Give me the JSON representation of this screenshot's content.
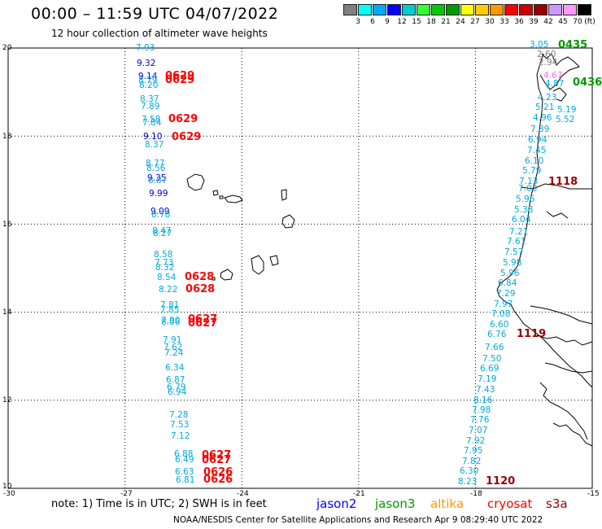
{
  "header": {
    "title": "00:00 – 11:59 UTC 04/07/2022",
    "subtitle": "12 hour collection of altimeter wave heights"
  },
  "color_scale": {
    "colors": [
      "#808080",
      "#00ffff",
      "#00aaff",
      "#0000ff",
      "#00cccc",
      "#33ff33",
      "#00cc00",
      "#009900",
      "#ffff00",
      "#ffcc00",
      "#ff9900",
      "#ff0000",
      "#cc0000",
      "#990000",
      "#cc99ff",
      "#ff99ff",
      "#000000"
    ],
    "labels": [
      "3",
      "6",
      "9",
      "12",
      "15",
      "18",
      "21",
      "24",
      "27",
      "30",
      "33",
      "36",
      "39",
      "42",
      "45",
      "70",
      "(ft)"
    ]
  },
  "axes": {
    "lat_labels": [
      "20",
      "18",
      "16",
      "14",
      "12",
      "10"
    ],
    "lon_labels": [
      "-30",
      "-27",
      "-24",
      "-21",
      "-18",
      "-15"
    ]
  },
  "passes": [
    {
      "id": "west-track",
      "color": "#00aadd",
      "values": [
        {
          "v": "7.93",
          "c": "#00aadd"
        },
        {
          "v": "9.32",
          "c": "#0000cc"
        },
        {
          "v": "9.14",
          "c": "#0000cc"
        },
        {
          "v": "8.79",
          "c": "#00aadd"
        },
        {
          "v": "8.20",
          "c": "#00aadd"
        },
        {
          "v": "8.37",
          "c": "#00aadd"
        },
        {
          "v": "7.89",
          "c": "#00aadd"
        },
        {
          "v": "7.58",
          "c": "#00aadd"
        },
        {
          "v": "7.84",
          "c": "#00aadd"
        },
        {
          "v": "9.10",
          "c": "#0000cc"
        },
        {
          "v": "8.37",
          "c": "#00aadd"
        },
        {
          "v": "8.77",
          "c": "#00aadd"
        },
        {
          "v": "8.56",
          "c": "#00aadd"
        },
        {
          "v": "9.35",
          "c": "#0000cc"
        },
        {
          "v": "8.87",
          "c": "#00aadd"
        },
        {
          "v": "9.99",
          "c": "#0000cc"
        },
        {
          "v": "9.09",
          "c": "#0000cc"
        },
        {
          "v": "8.78",
          "c": "#00aadd"
        },
        {
          "v": "8.47",
          "c": "#00aadd"
        },
        {
          "v": "8.27",
          "c": "#00aadd"
        },
        {
          "v": "8.58",
          "c": "#00aadd"
        },
        {
          "v": "7.73",
          "c": "#00aadd"
        },
        {
          "v": "8.32",
          "c": "#00aadd"
        },
        {
          "v": "8.54",
          "c": "#00aadd"
        },
        {
          "v": "8.22",
          "c": "#00aadd"
        },
        {
          "v": "7.81",
          "c": "#00aadd"
        },
        {
          "v": "7.85",
          "c": "#00aadd"
        },
        {
          "v": "7.90",
          "c": "#00aadd"
        },
        {
          "v": "8.06",
          "c": "#00aadd"
        },
        {
          "v": "7.91",
          "c": "#00aadd"
        },
        {
          "v": "7.62",
          "c": "#00aadd"
        },
        {
          "v": "7.24",
          "c": "#00aadd"
        },
        {
          "v": "6.34",
          "c": "#00aadd"
        },
        {
          "v": "6.87",
          "c": "#00aadd"
        },
        {
          "v": "6.79",
          "c": "#00aadd"
        },
        {
          "v": "6.94",
          "c": "#00aadd"
        },
        {
          "v": "7.28",
          "c": "#00aadd"
        },
        {
          "v": "7.53",
          "c": "#00aadd"
        },
        {
          "v": "7.12",
          "c": "#00aadd"
        },
        {
          "v": "6.88",
          "c": "#00aadd"
        },
        {
          "v": "6.49",
          "c": "#00aadd"
        },
        {
          "v": "6.63",
          "c": "#00aadd"
        },
        {
          "v": "6.81",
          "c": "#00aadd"
        }
      ]
    },
    {
      "id": "east-track",
      "color": "#00aadd",
      "values": [
        {
          "v": "3.05",
          "c": "#00aadd"
        },
        {
          "v": "2.60",
          "c": "#808080"
        },
        {
          "v": "2.94",
          "c": "#808080"
        },
        {
          "v": "4.67",
          "c": "#ff66ff"
        },
        {
          "v": "4.87",
          "c": "#00aadd"
        },
        {
          "v": "4.23",
          "c": "#00aadd"
        },
        {
          "v": "5.21",
          "c": "#00aadd"
        },
        {
          "v": "5.19",
          "c": "#00aadd"
        },
        {
          "v": "4.96",
          "c": "#00aadd"
        },
        {
          "v": "5.52",
          "c": "#00aadd"
        },
        {
          "v": "7.39",
          "c": "#00aadd"
        },
        {
          "v": "6.94",
          "c": "#00aadd"
        },
        {
          "v": "7.45",
          "c": "#00aadd"
        },
        {
          "v": "6.10",
          "c": "#00aadd"
        },
        {
          "v": "5.79",
          "c": "#00aadd"
        },
        {
          "v": "7.13",
          "c": "#00aadd"
        },
        {
          "v": "7.03",
          "c": "#00aadd"
        },
        {
          "v": "5.96",
          "c": "#00aadd"
        },
        {
          "v": "5.38",
          "c": "#00aadd"
        },
        {
          "v": "6.04",
          "c": "#00aadd"
        },
        {
          "v": "7.21",
          "c": "#00aadd"
        },
        {
          "v": "7.61",
          "c": "#00aadd"
        },
        {
          "v": "7.57",
          "c": "#00aadd"
        },
        {
          "v": "5.98",
          "c": "#00aadd"
        },
        {
          "v": "5.96",
          "c": "#00aadd"
        },
        {
          "v": "6.84",
          "c": "#00aadd"
        },
        {
          "v": "7.29",
          "c": "#00aadd"
        },
        {
          "v": "7.97",
          "c": "#00aadd"
        },
        {
          "v": "7.08",
          "c": "#00aadd"
        },
        {
          "v": "6.60",
          "c": "#00aadd"
        },
        {
          "v": "6.76",
          "c": "#00aadd"
        },
        {
          "v": "7.66",
          "c": "#00aadd"
        },
        {
          "v": "7.50",
          "c": "#00aadd"
        },
        {
          "v": "6.69",
          "c": "#00aadd"
        },
        {
          "v": "7.19",
          "c": "#00aadd"
        },
        {
          "v": "7.43",
          "c": "#00aadd"
        },
        {
          "v": "8.16",
          "c": "#00aadd"
        },
        {
          "v": "7.98",
          "c": "#00aadd"
        },
        {
          "v": "7.76",
          "c": "#00aadd"
        },
        {
          "v": "7.07",
          "c": "#00aadd"
        },
        {
          "v": "7.92",
          "c": "#00aadd"
        },
        {
          "v": "7.95",
          "c": "#00aadd"
        },
        {
          "v": "7.82",
          "c": "#00aadd"
        },
        {
          "v": "6.30",
          "c": "#00aadd"
        },
        {
          "v": "8.23",
          "c": "#00aadd"
        }
      ]
    }
  ],
  "times": [
    {
      "t": "0629",
      "c": "#ff0000"
    },
    {
      "t": "0629",
      "c": "#ff0000"
    },
    {
      "t": "0629",
      "c": "#ff0000"
    },
    {
      "t": "0629",
      "c": "#ff0000"
    },
    {
      "t": "0628",
      "c": "#ff0000"
    },
    {
      "t": "0628",
      "c": "#ff0000"
    },
    {
      "t": "0627",
      "c": "#ff0000"
    },
    {
      "t": "0627",
      "c": "#ff0000"
    },
    {
      "t": "0627",
      "c": "#ff0000"
    },
    {
      "t": "0627",
      "c": "#ff0000"
    },
    {
      "t": "0626",
      "c": "#ff0000"
    },
    {
      "t": "0626",
      "c": "#ff0000"
    },
    {
      "t": "0435",
      "c": "#009900"
    },
    {
      "t": "0436",
      "c": "#009900"
    },
    {
      "t": "1118",
      "c": "#990000"
    },
    {
      "t": "1119",
      "c": "#990000"
    },
    {
      "t": "1120",
      "c": "#990000"
    }
  ],
  "footer": {
    "note": "note: 1) Time is in UTC; 2) SWH is in feet",
    "satellites": [
      {
        "name": "jason2",
        "color": "#0000ff"
      },
      {
        "name": "jason3",
        "color": "#009900"
      },
      {
        "name": "altika",
        "color": "#ff9900"
      },
      {
        "name": "cryosat",
        "color": "#ff0000"
      },
      {
        "name": "s3a",
        "color": "#990000"
      }
    ],
    "credit": "NOAA/NESDIS Center for Satellite Applications and Research   Apr  9 08:29:40 UTC 2022"
  }
}
